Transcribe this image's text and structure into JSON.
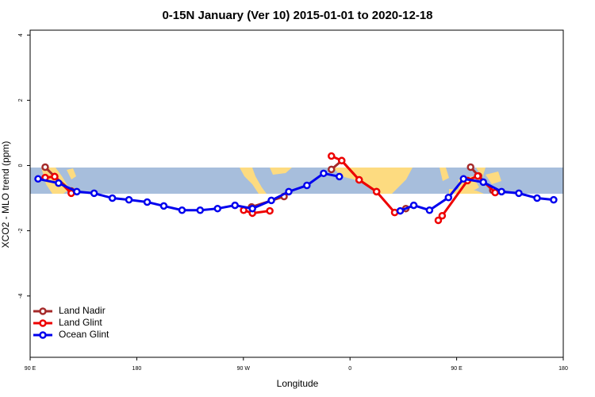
{
  "chart_data": {
    "type": "line",
    "title": "0-15N January (Ver 10)   2015-01-01 to 2020-12-18",
    "x_label": "Longitude",
    "y_label": "XCO2 - MLO trend (ppm)",
    "xlim": [
      90,
      540
    ],
    "xticks": [
      {
        "value": 90,
        "label": "90 E"
      },
      180,
      {
        "value": 270,
        "label": "90 W"
      },
      {
        "value": 360,
        "label": "0"
      },
      {
        "value": 450,
        "label": "90 E"
      },
      {
        "value": 540,
        "label": "180"
      }
    ],
    "ylim": [
      -5.88,
      4.15
    ],
    "yticks": [
      4,
      2,
      0,
      -2,
      -4
    ],
    "legend": "bottom-left",
    "series": [
      {
        "name": "Land Nadir",
        "color": "#a52a2a",
        "x": [
          102.7,
          110.7,
          124.7,
          200,
          276.9,
          304.3,
          324,
          344.3,
          353,
          367.7,
          382.4,
          395,
          407.1,
          434,
          461.8,
          468.5,
          480.5
        ],
        "values": [
          -0.05,
          -0.34,
          -0.78,
          null,
          -1.27,
          -0.95,
          null,
          -0.12,
          0.15,
          -0.44,
          -0.8,
          null,
          -1.32,
          null,
          -0.05,
          -0.32,
          -0.76
        ]
      },
      {
        "name": "Land Glint",
        "color": "#ee0000",
        "x": [
          102.7,
          110.7,
          124.7,
          200,
          270.2,
          277.6,
          292.3,
          318,
          344.3,
          353,
          367.7,
          382.4,
          397.7,
          416,
          434.5,
          437.8,
          459.2,
          467.8,
          482.5
        ],
        "values": [
          -0.37,
          -0.34,
          -0.85,
          null,
          -1.37,
          -1.46,
          -1.39,
          null,
          0.29,
          0.15,
          -0.44,
          -0.8,
          -1.44,
          null,
          -1.68,
          -1.54,
          -0.46,
          -0.32,
          -0.83
        ]
      },
      {
        "name": "Ocean Glint",
        "color": "#0000ee",
        "x": [
          96.7,
          114,
          129.4,
          144,
          159.4,
          173.4,
          188.8,
          202.8,
          218.2,
          233.5,
          248.2,
          262.9,
          277.6,
          293.6,
          308.3,
          323.6,
          337.7,
          351,
          376,
          402.4,
          413.8,
          427.1,
          443.1,
          455.8,
          472.5,
          487.9,
          502.5,
          517.9,
          531.9
        ],
        "values": [
          -0.41,
          -0.54,
          -0.8,
          -0.85,
          -1.0,
          -1.05,
          -1.12,
          -1.24,
          -1.37,
          -1.37,
          -1.32,
          -1.22,
          -1.32,
          -1.07,
          -0.8,
          -0.61,
          -0.24,
          -0.34,
          null,
          -1.39,
          -1.22,
          -1.37,
          -0.98,
          -0.41,
          -0.51,
          -0.8,
          -0.85,
          -1.0,
          -1.05
        ]
      }
    ]
  }
}
